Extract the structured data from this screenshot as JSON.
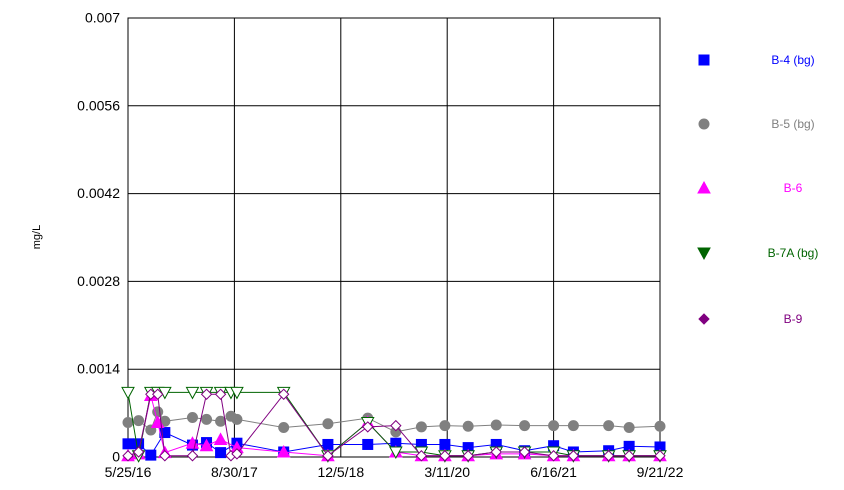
{
  "chart_data": {
    "type": "scatter",
    "title": "",
    "xlabel": "",
    "ylabel": "mg/L",
    "ylim": [
      0,
      0.007
    ],
    "xlim": [
      "2016-05-25",
      "2022-09-21"
    ],
    "grid": true,
    "legend_position": "right",
    "y_ticks": [
      "0",
      "0.0014",
      "0.0028",
      "0.0042",
      "0.0056",
      "0.007"
    ],
    "x_ticks": [
      {
        "label": "5/25/16",
        "date": "2016-05-25"
      },
      {
        "label": "8/30/17",
        "date": "2017-08-30"
      },
      {
        "label": "12/5/18",
        "date": "2018-12-05"
      },
      {
        "label": "3/11/20",
        "date": "2020-03-11"
      },
      {
        "label": "6/16/21",
        "date": "2021-06-16"
      },
      {
        "label": "9/21/22",
        "date": "2022-09-21"
      }
    ],
    "series": [
      {
        "name": "B-4 (bg)",
        "color": "#0000ff",
        "marker": "square",
        "fill": "filled",
        "points": [
          [
            "2016-05-25",
            0.00021
          ],
          [
            "2016-07-10",
            0.00021
          ],
          [
            "2016-09-01",
            3e-05
          ],
          [
            "2016-11-01",
            0.00039
          ],
          [
            "2017-03-01",
            0.00019
          ],
          [
            "2017-05-01",
            0.00023
          ],
          [
            "2017-07-01",
            7e-05
          ],
          [
            "2017-09-10",
            0.00022
          ],
          [
            "2018-04-01",
            8e-05
          ],
          [
            "2018-10-10",
            0.0002
          ],
          [
            "2019-04-01",
            0.0002
          ],
          [
            "2019-08-01",
            0.00022
          ],
          [
            "2019-11-20",
            0.0002
          ],
          [
            "2020-03-01",
            0.0002
          ],
          [
            "2020-06-10",
            0.00015
          ],
          [
            "2020-10-10",
            0.0002
          ],
          [
            "2021-02-10",
            0.0001
          ],
          [
            "2021-06-16",
            0.00018
          ],
          [
            "2021-09-10",
            8e-05
          ],
          [
            "2022-02-10",
            0.0001
          ],
          [
            "2022-05-10",
            0.00017
          ],
          [
            "2022-09-21",
            0.00016
          ]
        ]
      },
      {
        "name": "B-5 (bg)",
        "color": "#808080",
        "marker": "circle",
        "fill": "filled",
        "points": [
          [
            "2016-05-25",
            0.00055
          ],
          [
            "2016-07-10",
            0.00058
          ],
          [
            "2016-09-01",
            0.00043
          ],
          [
            "2016-10-01",
            0.00072
          ],
          [
            "2016-11-01",
            0.00057
          ],
          [
            "2017-03-01",
            0.00063
          ],
          [
            "2017-05-01",
            0.0006
          ],
          [
            "2017-07-01",
            0.00057
          ],
          [
            "2017-08-15",
            0.00065
          ],
          [
            "2017-09-10",
            0.0006
          ],
          [
            "2018-04-01",
            0.00047
          ],
          [
            "2018-10-10",
            0.00053
          ],
          [
            "2019-04-01",
            0.00062
          ],
          [
            "2019-08-01",
            0.0004
          ],
          [
            "2019-11-20",
            0.00048
          ],
          [
            "2020-03-01",
            0.0005
          ],
          [
            "2020-06-10",
            0.00049
          ],
          [
            "2020-10-10",
            0.00051
          ],
          [
            "2021-02-10",
            0.0005
          ],
          [
            "2021-06-16",
            0.0005
          ],
          [
            "2021-09-10",
            0.0005
          ],
          [
            "2022-02-10",
            0.0005
          ],
          [
            "2022-05-10",
            0.00047
          ],
          [
            "2022-09-21",
            0.00049
          ]
        ]
      },
      {
        "name": "B-6",
        "color": "#ff00ff",
        "marker": "triangle-up",
        "fill": "filled",
        "points": [
          [
            "2016-05-25",
            2e-05
          ],
          [
            "2016-07-10",
            5e-05
          ],
          [
            "2016-09-01",
            0.00098
          ],
          [
            "2016-10-01",
            0.00055
          ],
          [
            "2016-11-01",
            7e-05
          ],
          [
            "2017-03-01",
            0.00022
          ],
          [
            "2017-05-01",
            0.00018
          ],
          [
            "2017-07-01",
            0.00028
          ],
          [
            "2017-09-10",
            0.00015
          ],
          [
            "2018-04-01",
            8e-05
          ],
          [
            "2018-10-10",
            2e-05
          ],
          [
            "2019-04-01",
            0.00055
          ],
          [
            "2019-08-01",
            8e-05
          ],
          [
            "2019-11-20",
            2e-05
          ],
          [
            "2020-03-01",
            2e-05
          ],
          [
            "2020-06-10",
            2e-05
          ],
          [
            "2020-10-10",
            5e-05
          ],
          [
            "2021-02-10",
            5e-05
          ],
          [
            "2021-06-16",
            2e-05
          ],
          [
            "2021-09-10",
            2e-05
          ],
          [
            "2022-02-10",
            2e-05
          ],
          [
            "2022-05-10",
            2e-05
          ],
          [
            "2022-09-21",
            2e-05
          ]
        ]
      },
      {
        "name": "B-7A (bg)",
        "color": "#006400",
        "marker": "triangle-down",
        "fill": "open",
        "points": [
          [
            "2016-05-25",
            0.00103
          ],
          [
            "2016-07-10",
            2e-05
          ],
          [
            "2016-09-01",
            0.00103
          ],
          [
            "2016-10-01",
            0.00103
          ],
          [
            "2016-11-01",
            0.00103
          ],
          [
            "2017-03-01",
            0.00103
          ],
          [
            "2017-05-01",
            0.00103
          ],
          [
            "2017-07-01",
            0.00103
          ],
          [
            "2017-08-15",
            0.00103
          ],
          [
            "2017-09-10",
            0.00103
          ],
          [
            "2018-04-01",
            0.00103
          ],
          [
            "2018-10-10",
            2e-05
          ],
          [
            "2019-04-01",
            0.00055
          ],
          [
            "2019-08-01",
            8e-05
          ],
          [
            "2019-11-20",
            8e-05
          ],
          [
            "2020-03-01",
            2e-05
          ],
          [
            "2020-06-10",
            2e-05
          ],
          [
            "2020-10-10",
            8e-05
          ],
          [
            "2021-02-10",
            8e-05
          ],
          [
            "2021-06-16",
            8e-05
          ],
          [
            "2021-09-10",
            2e-05
          ],
          [
            "2022-02-10",
            2e-05
          ],
          [
            "2022-05-10",
            2e-05
          ],
          [
            "2022-09-21",
            2e-05
          ]
        ]
      },
      {
        "name": "B-9",
        "color": "#800080",
        "marker": "diamond",
        "fill": "open",
        "points": [
          [
            "2016-05-25",
            2e-05
          ],
          [
            "2016-07-10",
            8e-05
          ],
          [
            "2016-09-01",
            0.001
          ],
          [
            "2016-10-01",
            0.001
          ],
          [
            "2016-11-01",
            2e-05
          ],
          [
            "2017-03-01",
            2e-05
          ],
          [
            "2017-05-01",
            0.001
          ],
          [
            "2017-07-01",
            0.001
          ],
          [
            "2017-08-15",
            2e-05
          ],
          [
            "2017-09-10",
            5e-05
          ],
          [
            "2018-04-01",
            0.001
          ],
          [
            "2018-10-10",
            2e-05
          ],
          [
            "2019-04-01",
            0.00048
          ],
          [
            "2019-08-01",
            0.0005
          ],
          [
            "2019-11-20",
            2e-05
          ],
          [
            "2020-03-01",
            2e-05
          ],
          [
            "2020-06-10",
            2e-05
          ],
          [
            "2020-10-10",
            8e-05
          ],
          [
            "2021-02-10",
            8e-05
          ],
          [
            "2021-06-16",
            2e-05
          ],
          [
            "2021-09-10",
            2e-05
          ],
          [
            "2022-02-10",
            2e-05
          ],
          [
            "2022-05-10",
            2e-05
          ],
          [
            "2022-09-21",
            2e-05
          ]
        ]
      }
    ]
  }
}
